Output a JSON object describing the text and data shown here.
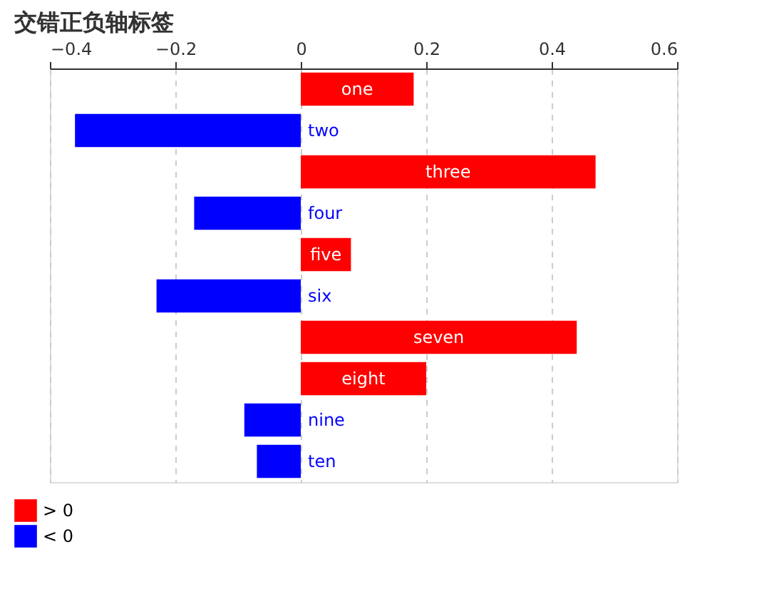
{
  "chart_data": {
    "type": "bar",
    "orientation": "horizontal",
    "title": "交错正负轴标签",
    "categories": [
      "one",
      "two",
      "three",
      "four",
      "five",
      "six",
      "seven",
      "eight",
      "nine",
      "ten"
    ],
    "series": [
      {
        "name": "> 0",
        "color": "#ff0000",
        "values": [
          0.18,
          null,
          0.47,
          null,
          0.08,
          null,
          0.44,
          0.2,
          null,
          null
        ]
      },
      {
        "name": "< 0",
        "color": "#0000ff",
        "values": [
          null,
          -0.36,
          null,
          -0.17,
          null,
          -0.23,
          null,
          null,
          -0.09,
          -0.07
        ]
      }
    ],
    "xlim": [
      -0.4,
      0.6
    ],
    "xticks": [
      -0.4,
      -0.2,
      0,
      0.2,
      0.4,
      0.6
    ],
    "grid": "x",
    "legend": "bottom left",
    "tick_labels": "x"
  }
}
